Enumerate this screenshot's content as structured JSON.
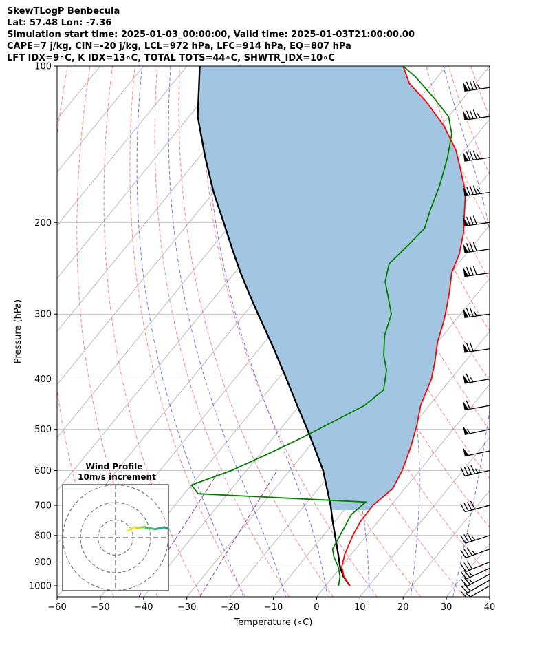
{
  "header": {
    "line1": "SkewTLogP Benbecula",
    "line2": "Lat: 57.48   Lon: -7.36",
    "line3": "Simulation start time: 2025-01-03_00:00:00, Valid time: 2025-01-03T21:00:00.00",
    "line4": "CAPE=7 j/kg, CIN=-20 j/kg, LCL=972 hPa, LFC=914 hPa, EQ=807 hPa",
    "line5": "LFT IDX=9∘C, K IDX=13∘C, TOTAL TOTS=44∘C, SHWTR_IDX=10∘C"
  },
  "colors": {
    "temperature": "#ff0000",
    "dewpoint": "#008000",
    "parcel": "#000000",
    "cape_fill": "#a2c6e1",
    "dry_adiabat": "#ff5555",
    "moist_adiabat": "#4455ee",
    "mixing_ratio": "#8833aa",
    "isotherm": "#aaaaaa"
  },
  "chart_data": {
    "type": "line",
    "subtype": "skew-T log-P",
    "xlabel": "Temperature (∘C)",
    "ylabel": "Pressure (hPa)",
    "xlim": [
      -60,
      40
    ],
    "ylim": [
      1050,
      100
    ],
    "y_scale": "log",
    "x_ticks": [
      -60,
      -50,
      -40,
      -30,
      -20,
      -10,
      0,
      10,
      20,
      30,
      40
    ],
    "y_ticks": [
      100,
      200,
      300,
      400,
      500,
      600,
      700,
      800,
      900,
      1000
    ],
    "grid": true,
    "series": [
      {
        "key": "temperature",
        "points": [
          [
            5.6,
            1000
          ],
          [
            2.5,
            960
          ],
          [
            0.2,
            920
          ],
          [
            -1.5,
            870
          ],
          [
            -3.2,
            800
          ],
          [
            -4.1,
            750
          ],
          [
            -4.2,
            700
          ],
          [
            -2.8,
            650
          ],
          [
            -4.0,
            600
          ],
          [
            -6.5,
            540
          ],
          [
            -9.2,
            490
          ],
          [
            -12.0,
            450
          ],
          [
            -14.5,
            400
          ],
          [
            -17.0,
            370
          ],
          [
            -20.0,
            340
          ],
          [
            -22.5,
            310
          ],
          [
            -24.6,
            290
          ],
          [
            -27.0,
            270
          ],
          [
            -29.8,
            250
          ],
          [
            -31.6,
            230
          ],
          [
            -34.5,
            210
          ],
          [
            -38.5,
            190
          ],
          [
            -41.8,
            175
          ],
          [
            -46.6,
            160
          ],
          [
            -52.0,
            145
          ],
          [
            -59.5,
            130
          ],
          [
            -68.0,
            117
          ],
          [
            -75.3,
            108
          ],
          [
            -80.0,
            100
          ]
        ]
      },
      {
        "key": "dewpoint",
        "points": [
          [
            3.0,
            1000
          ],
          [
            1.6,
            960
          ],
          [
            -0.6,
            920
          ],
          [
            -3.5,
            880
          ],
          [
            -5.3,
            850
          ],
          [
            -6.5,
            780
          ],
          [
            -7.5,
            730
          ],
          [
            -6.5,
            690
          ],
          [
            -46.8,
            665
          ],
          [
            -50.0,
            640
          ],
          [
            -43.5,
            600
          ],
          [
            -38.5,
            560
          ],
          [
            -33.5,
            520
          ],
          [
            -30.0,
            490
          ],
          [
            -25.0,
            450
          ],
          [
            -23.5,
            420
          ],
          [
            -26.5,
            385
          ],
          [
            -30.0,
            360
          ],
          [
            -33.5,
            330
          ],
          [
            -36.0,
            300
          ],
          [
            -39.6,
            280
          ],
          [
            -43.5,
            260
          ],
          [
            -46.0,
            240
          ],
          [
            -45.0,
            220
          ],
          [
            -44.5,
            205
          ],
          [
            -46.5,
            190
          ],
          [
            -49.0,
            170
          ],
          [
            -52.5,
            150
          ],
          [
            -56.0,
            135
          ],
          [
            -60.0,
            125
          ],
          [
            -67.0,
            115
          ],
          [
            -75.0,
            105
          ],
          [
            -80.0,
            100
          ]
        ]
      },
      {
        "key": "parcel",
        "points": [
          [
            5.6,
            1000
          ],
          [
            2.4,
            960
          ],
          [
            -0.2,
            920
          ],
          [
            -3.0,
            870
          ],
          [
            -7.3,
            800
          ],
          [
            -10.6,
            750
          ],
          [
            -14.0,
            700
          ],
          [
            -18.0,
            650
          ],
          [
            -22.3,
            600
          ],
          [
            -27.7,
            550
          ],
          [
            -33.7,
            500
          ],
          [
            -40.5,
            450
          ],
          [
            -48.0,
            400
          ],
          [
            -56.6,
            350
          ],
          [
            -66.8,
            300
          ],
          [
            -72.5,
            275
          ],
          [
            -78.6,
            250
          ],
          [
            -85.0,
            225
          ],
          [
            -92.0,
            200
          ],
          [
            -100.0,
            175
          ],
          [
            -108.5,
            150
          ],
          [
            -118.0,
            125
          ],
          [
            -127.0,
            100
          ]
        ]
      }
    ],
    "barbs": {
      "pressures": [
        1000,
        975,
        950,
        925,
        900,
        850,
        800,
        700,
        600,
        550,
        500,
        450,
        400,
        350,
        300,
        250,
        225,
        200,
        175,
        150,
        125,
        110
      ],
      "direction_deg": [
        240,
        240,
        242,
        245,
        248,
        250,
        252,
        255,
        258,
        258,
        258,
        260,
        260,
        262,
        262,
        262,
        262,
        262,
        262,
        262,
        262,
        262
      ],
      "speed_kt": [
        15,
        20,
        25,
        25,
        30,
        35,
        35,
        40,
        45,
        50,
        55,
        60,
        65,
        70,
        75,
        80,
        80,
        80,
        85,
        85,
        85,
        85
      ]
    },
    "hodograph": {
      "title": "Wind Profile",
      "subtitle": "10m/s increment",
      "rings_ms": [
        10,
        20,
        30
      ]
    }
  }
}
